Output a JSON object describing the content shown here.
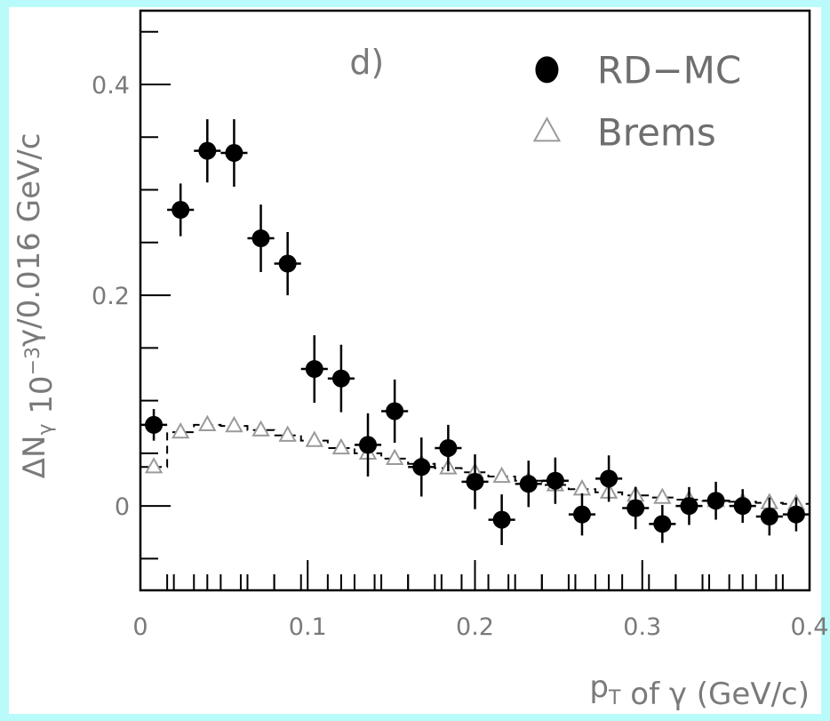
{
  "chart_data": {
    "type": "scatter",
    "annotation": "d)",
    "xlabel": "p_T of γ (GeV/c)",
    "ylabel": "ΔN_γ 10^-3 γ/0.016 GeV/c",
    "xlim": [
      0,
      0.4
    ],
    "ylim": [
      -0.08,
      0.47
    ],
    "x_ticks": [
      "0",
      "0.1",
      "0.2",
      "0.3",
      "0.4"
    ],
    "y_ticks": [
      "0",
      "0.2",
      "0.4"
    ],
    "legend_position": "top-right",
    "bin_half_width": 0.008,
    "series": [
      {
        "name": "RD−MC",
        "marker": "filled-circle",
        "color": "#000000",
        "x": [
          0.008,
          0.024,
          0.04,
          0.056,
          0.072,
          0.088,
          0.104,
          0.12,
          0.136,
          0.152,
          0.168,
          0.184,
          0.2,
          0.216,
          0.232,
          0.248,
          0.264,
          0.28,
          0.296,
          0.312,
          0.328,
          0.344,
          0.36,
          0.376,
          0.392
        ],
        "y": [
          0.077,
          0.281,
          0.337,
          0.335,
          0.254,
          0.23,
          0.13,
          0.121,
          0.058,
          0.09,
          0.037,
          0.055,
          0.023,
          -0.013,
          0.021,
          0.024,
          -0.008,
          0.026,
          -0.002,
          -0.017,
          0.0,
          0.005,
          0.0,
          -0.01,
          -0.008
        ],
        "yerr": [
          0.015,
          0.025,
          0.03,
          0.032,
          0.032,
          0.03,
          0.032,
          0.032,
          0.03,
          0.03,
          0.028,
          0.022,
          0.026,
          0.024,
          0.022,
          0.022,
          0.02,
          0.022,
          0.02,
          0.018,
          0.018,
          0.018,
          0.016,
          0.018,
          0.016
        ]
      },
      {
        "name": "Brems",
        "marker": "open-triangle",
        "color": "#9a9a9a",
        "x": [
          0.008,
          0.024,
          0.04,
          0.056,
          0.072,
          0.088,
          0.104,
          0.12,
          0.136,
          0.152,
          0.168,
          0.184,
          0.2,
          0.216,
          0.232,
          0.248,
          0.264,
          0.28,
          0.296,
          0.312,
          0.328,
          0.344,
          0.36,
          0.376,
          0.392
        ],
        "y": [
          0.037,
          0.07,
          0.077,
          0.076,
          0.072,
          0.067,
          0.062,
          0.055,
          0.05,
          0.045,
          0.04,
          0.036,
          0.032,
          0.028,
          0.024,
          0.02,
          0.016,
          0.013,
          0.01,
          0.008,
          0.006,
          0.005,
          0.004,
          0.003,
          0.002
        ]
      }
    ]
  }
}
